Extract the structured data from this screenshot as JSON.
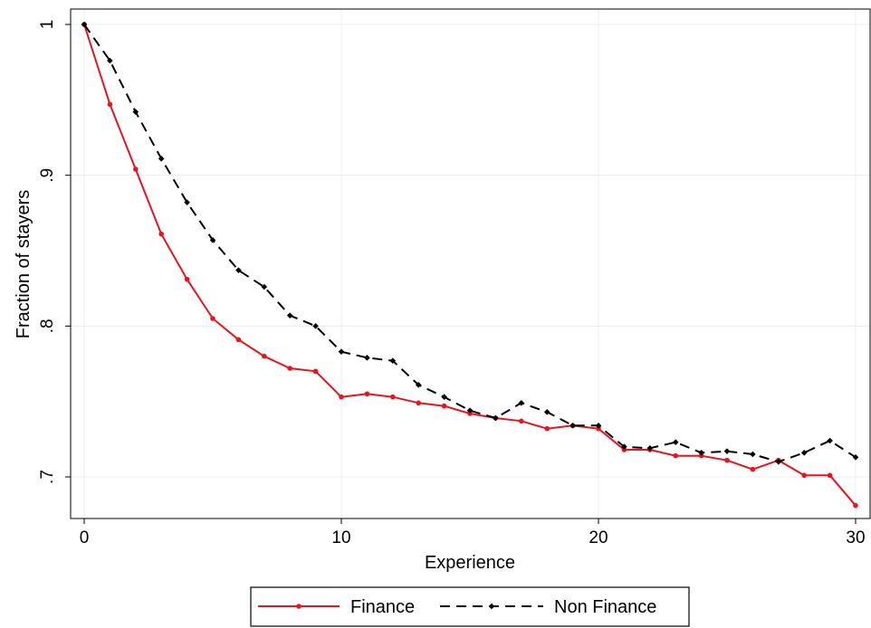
{
  "chart_data": {
    "type": "line",
    "xlabel": "Experience",
    "ylabel": "Fraction of stayers",
    "xlim": [
      0,
      30
    ],
    "ylim": [
      0.7,
      1.0
    ],
    "xticks": [
      {
        "value": 0,
        "label": "0"
      },
      {
        "value": 10,
        "label": "10"
      },
      {
        "value": 20,
        "label": "20"
      },
      {
        "value": 30,
        "label": "30"
      }
    ],
    "yticks": [
      {
        "value": 0.7,
        "label": ".7"
      },
      {
        "value": 0.8,
        "label": ".8"
      },
      {
        "value": 0.9,
        "label": ".9"
      },
      {
        "value": 1.0,
        "label": "1"
      }
    ],
    "grid": true,
    "legend_position": "bottom",
    "x": [
      0,
      1,
      2,
      3,
      4,
      5,
      6,
      7,
      8,
      9,
      10,
      11,
      12,
      13,
      14,
      15,
      16,
      17,
      18,
      19,
      20,
      21,
      22,
      23,
      24,
      25,
      26,
      27,
      28,
      29,
      30
    ],
    "series": [
      {
        "name": "Finance",
        "color": "#e8141e",
        "style": "solid",
        "values": [
          1.0,
          0.947,
          0.904,
          0.861,
          0.831,
          0.805,
          0.791,
          0.78,
          0.772,
          0.77,
          0.753,
          0.755,
          0.753,
          0.749,
          0.747,
          0.742,
          0.739,
          0.737,
          0.732,
          0.734,
          0.732,
          0.718,
          0.718,
          0.714,
          0.714,
          0.711,
          0.705,
          0.711,
          0.701,
          0.701,
          0.681
        ]
      },
      {
        "name": "Non Finance",
        "color": "#000000",
        "style": "dashed",
        "values": [
          1.0,
          0.976,
          0.942,
          0.911,
          0.882,
          0.857,
          0.837,
          0.826,
          0.807,
          0.8,
          0.783,
          0.779,
          0.777,
          0.761,
          0.753,
          0.744,
          0.739,
          0.749,
          0.743,
          0.734,
          0.734,
          0.72,
          0.719,
          0.723,
          0.716,
          0.717,
          0.715,
          0.71,
          0.716,
          0.724,
          0.713
        ]
      }
    ]
  }
}
